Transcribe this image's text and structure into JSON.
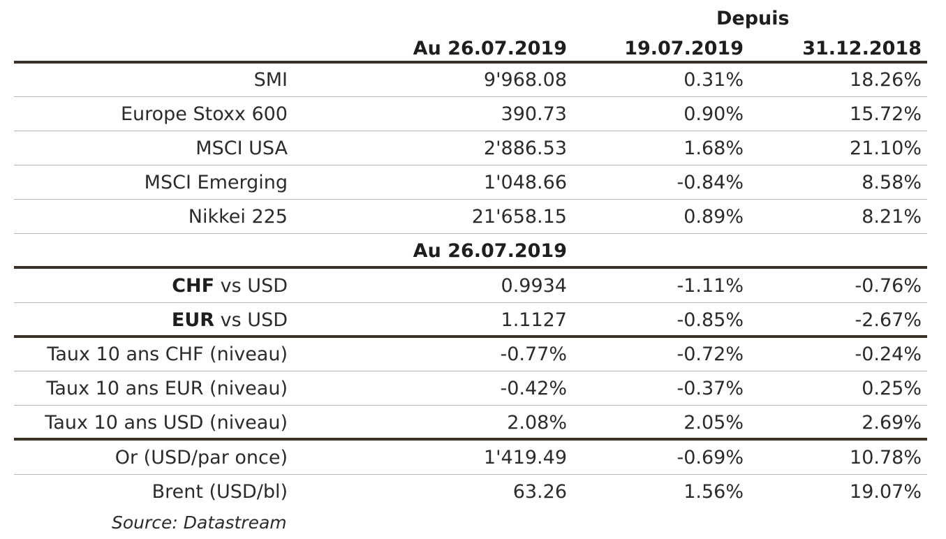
{
  "header": {
    "group_label": "Depuis",
    "col_current": "Au 26.07.2019",
    "col_week": "19.07.2019",
    "col_ytd": "31.12.2018"
  },
  "equities": [
    {
      "name": "SMI",
      "value": "9'968.08",
      "week": "0.31%",
      "ytd": "18.26%"
    },
    {
      "name": "Europe Stoxx 600",
      "value": "390.73",
      "week": "0.90%",
      "ytd": "15.72%"
    },
    {
      "name": "MSCI USA",
      "value": "2'886.53",
      "week": "1.68%",
      "ytd": "21.10%"
    },
    {
      "name": "MSCI Emerging",
      "value": "1'048.66",
      "week": "-0.84%",
      "ytd": "8.58%"
    },
    {
      "name": "Nikkei 225",
      "value": "21'658.15",
      "week": "0.89%",
      "ytd": "8.21%"
    }
  ],
  "section2_header": "Au 26.07.2019",
  "fx": [
    {
      "code": "CHF",
      "suffix": " vs USD",
      "value": "0.9934",
      "week": "-1.11%",
      "ytd": "-0.76%"
    },
    {
      "code": "EUR",
      "suffix": " vs USD",
      "value": "1.1127",
      "week": "-0.85%",
      "ytd": "-2.67%"
    }
  ],
  "rates": [
    {
      "name": "Taux 10 ans CHF (niveau)",
      "value": "-0.77%",
      "week": "-0.72%",
      "ytd": "-0.24%"
    },
    {
      "name": "Taux 10 ans EUR (niveau)",
      "value": "-0.42%",
      "week": "-0.37%",
      "ytd": "0.25%"
    },
    {
      "name": "Taux 10 ans USD (niveau)",
      "value": "2.08%",
      "week": "2.05%",
      "ytd": "2.69%"
    }
  ],
  "commodities": [
    {
      "name": "Or (USD/par once)",
      "value": "1'419.49",
      "week": "-0.69%",
      "ytd": "10.78%"
    },
    {
      "name": "Brent (USD/bl)",
      "value": "63.26",
      "week": "1.56%",
      "ytd": "19.07%"
    }
  ],
  "source": "Source: Datastream"
}
